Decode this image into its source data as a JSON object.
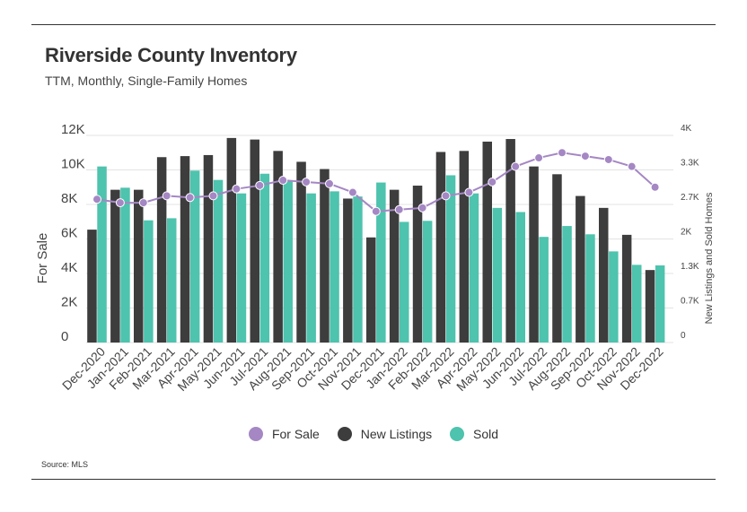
{
  "header": {
    "title": "Riverside County Inventory",
    "subtitle": "TTM, Monthly, Single-Family Homes"
  },
  "footer": {
    "source": "Source:  MLS"
  },
  "colors": {
    "for_sale": "#a587c4",
    "new_listings": "#3d3d3d",
    "sold": "#4ec3ae",
    "grid": "#e3e3e3"
  },
  "legend": {
    "items": [
      {
        "label": "For Sale",
        "color_key": "for_sale"
      },
      {
        "label": "New Listings",
        "color_key": "new_listings"
      },
      {
        "label": "Sold",
        "color_key": "sold"
      }
    ]
  },
  "chart_data": {
    "type": "bar",
    "title": "Riverside County Inventory",
    "subtitle": "TTM, Monthly, Single-Family Homes",
    "categories": [
      "Dec-2020",
      "Jan-2021",
      "Feb-2021",
      "Mar-2021",
      "Apr-2021",
      "May-2021",
      "Jun-2021",
      "Jul-2021",
      "Aug-2021",
      "Sep-2021",
      "Oct-2021",
      "Nov-2021",
      "Dec-2021",
      "Jan-2022",
      "Feb-2022",
      "Mar-2022",
      "Apr-2022",
      "May-2022",
      "Jun-2022",
      "Jul-2022",
      "Aug-2022",
      "Sep-2022",
      "Oct-2022",
      "Nov-2022",
      "Dec-2022"
    ],
    "y_left": {
      "label": "For Sale",
      "ylim": [
        0,
        12000
      ],
      "ticks": [
        0,
        2000,
        4000,
        6000,
        8000,
        10000,
        12000
      ],
      "tick_labels": [
        "0",
        "2K",
        "4K",
        "6K",
        "8K",
        "10K",
        "12K"
      ]
    },
    "y_right": {
      "label": "New Listings and Sold Homes",
      "ylim": [
        0,
        4000
      ],
      "ticks": [
        0,
        667,
        1333,
        2000,
        2667,
        3333,
        4000
      ],
      "tick_labels": [
        "0",
        "0.7K",
        "1.3K",
        "2K",
        "2.7K",
        "3.3K",
        "4K"
      ]
    },
    "grid": true,
    "legend_position": "bottom-center",
    "series": [
      {
        "name": "For Sale",
        "type": "line",
        "axis": "left",
        "color_key": "for_sale",
        "values": [
          8300,
          8100,
          8100,
          8500,
          8400,
          8500,
          8900,
          9100,
          9400,
          9300,
          9200,
          8700,
          7600,
          7700,
          7800,
          8500,
          8700,
          9300,
          10200,
          10700,
          11000,
          10800,
          10600,
          10200,
          9000
        ]
      },
      {
        "name": "New Listings",
        "type": "bar",
        "axis": "right",
        "color_key": "new_listings",
        "values": [
          2180,
          2950,
          2950,
          3580,
          3600,
          3620,
          3950,
          3920,
          3700,
          3490,
          3350,
          2780,
          2030,
          2950,
          3030,
          3680,
          3700,
          3880,
          3930,
          3400,
          3250,
          2830,
          2600,
          2080,
          1400
        ]
      },
      {
        "name": "Sold",
        "type": "bar",
        "axis": "right",
        "color_key": "sold",
        "values": [
          3400,
          2990,
          2360,
          2400,
          3320,
          3140,
          2880,
          3260,
          3110,
          2880,
          2920,
          2820,
          3090,
          2330,
          2350,
          3230,
          2880,
          2600,
          2520,
          2040,
          2250,
          2090,
          1760,
          1500,
          1490
        ]
      }
    ]
  }
}
